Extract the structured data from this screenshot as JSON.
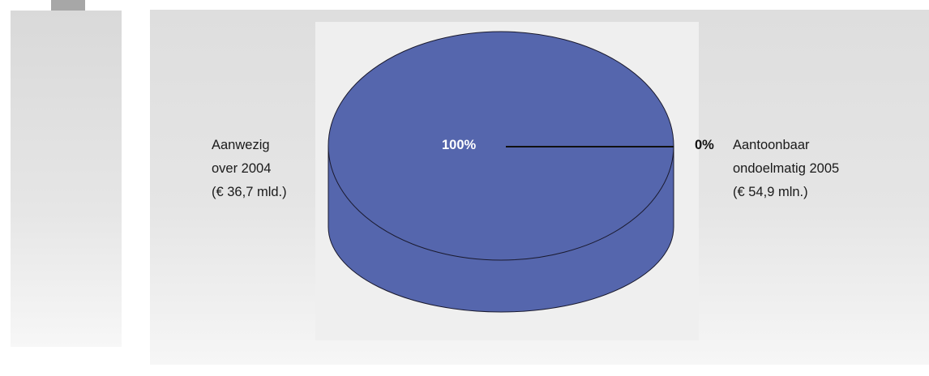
{
  "chart_data": {
    "type": "pie",
    "slices": [
      {
        "percent_label": "100%",
        "value": 36.7,
        "label_lines": [
          "Aanwezig",
          "over 2004",
          "(€ 36,7 mld.)"
        ]
      },
      {
        "percent_label": "0%",
        "value": 0.0549,
        "label_lines": [
          "Aantoonbaar",
          "ondoelmatig 2005",
          "(€ 54,9 mln.)"
        ]
      }
    ],
    "pie_color": "#5566ad"
  }
}
